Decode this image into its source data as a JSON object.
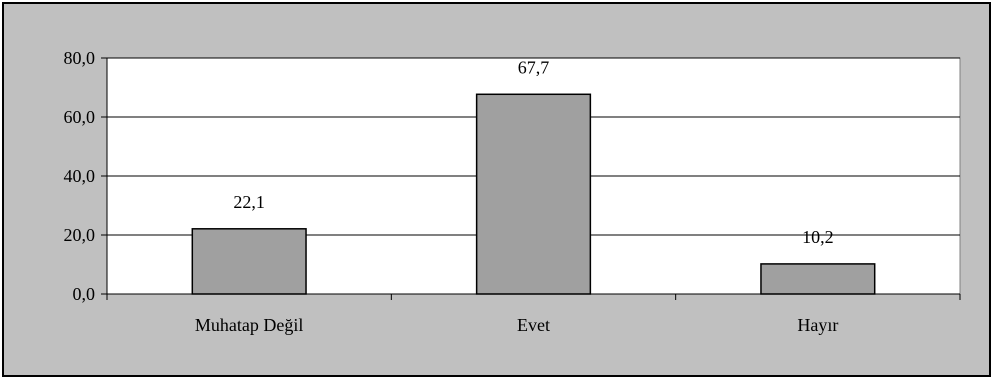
{
  "chart_data": {
    "type": "bar",
    "categories": [
      "Muhatap Değil",
      "Evet",
      "Hayır"
    ],
    "values": [
      22.1,
      67.7,
      10.2
    ],
    "value_labels": [
      "22,1",
      "67,7",
      "10,2"
    ],
    "title": "",
    "xlabel": "",
    "ylabel": "",
    "ylim": [
      0,
      80
    ],
    "yticks": [
      0,
      20,
      40,
      60,
      80
    ],
    "ytick_labels": [
      "0,0",
      "20,0",
      "40,0",
      "60,0",
      "80,0"
    ],
    "grid": true,
    "legend": "none",
    "colors": {
      "chart_background": "#c0c0c0",
      "plot_background": "#ffffff",
      "bar_fill": "#a0a0a0",
      "bar_stroke": "#000000",
      "gridline": "#000000"
    }
  }
}
